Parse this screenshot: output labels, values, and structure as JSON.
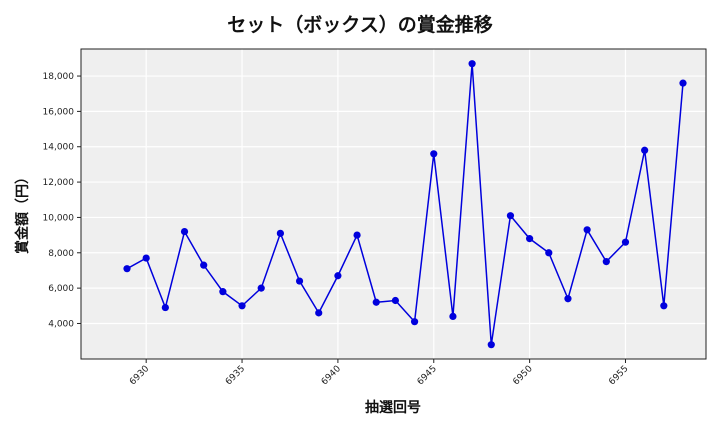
{
  "chart_data": {
    "type": "line",
    "title": "セット（ボックス）の賞金推移",
    "xlabel": "抽選回号",
    "ylabel": "賞金額（円）",
    "x": [
      6929,
      6930,
      6931,
      6932,
      6933,
      6934,
      6935,
      6936,
      6937,
      6938,
      6939,
      6940,
      6941,
      6942,
      6943,
      6944,
      6945,
      6946,
      6947,
      6948,
      6949,
      6950,
      6951,
      6952,
      6953,
      6954,
      6955,
      6956,
      6957,
      6958
    ],
    "series": [
      {
        "name": "セット（ボックス）",
        "color": "#0000dd",
        "marker": "circle",
        "values": [
          7100,
          7700,
          4900,
          9200,
          7300,
          5800,
          5000,
          6000,
          9100,
          6400,
          4600,
          6700,
          9000,
          5200,
          5300,
          4100,
          13600,
          4400,
          18700,
          2800,
          10100,
          8800,
          8000,
          5400,
          9300,
          7500,
          8600,
          13800,
          5000,
          17600
        ]
      }
    ],
    "xticks": [
      6930,
      6935,
      6940,
      6945,
      6950,
      6955
    ],
    "xtick_labels": [
      "6930",
      "6935",
      "6940",
      "6945",
      "6950",
      "6955"
    ],
    "yticks": [
      4000,
      6000,
      8000,
      10000,
      12000,
      14000,
      16000,
      18000
    ],
    "ytick_labels": [
      "4,000",
      "6,000",
      "8,000",
      "10,000",
      "12,000",
      "14,000",
      "16,000",
      "18,000"
    ],
    "xlim": [
      6926.6,
      6959.2
    ],
    "ylim": [
      1990,
      19530
    ],
    "grid": true,
    "legend": "none",
    "background": "#efefef"
  }
}
